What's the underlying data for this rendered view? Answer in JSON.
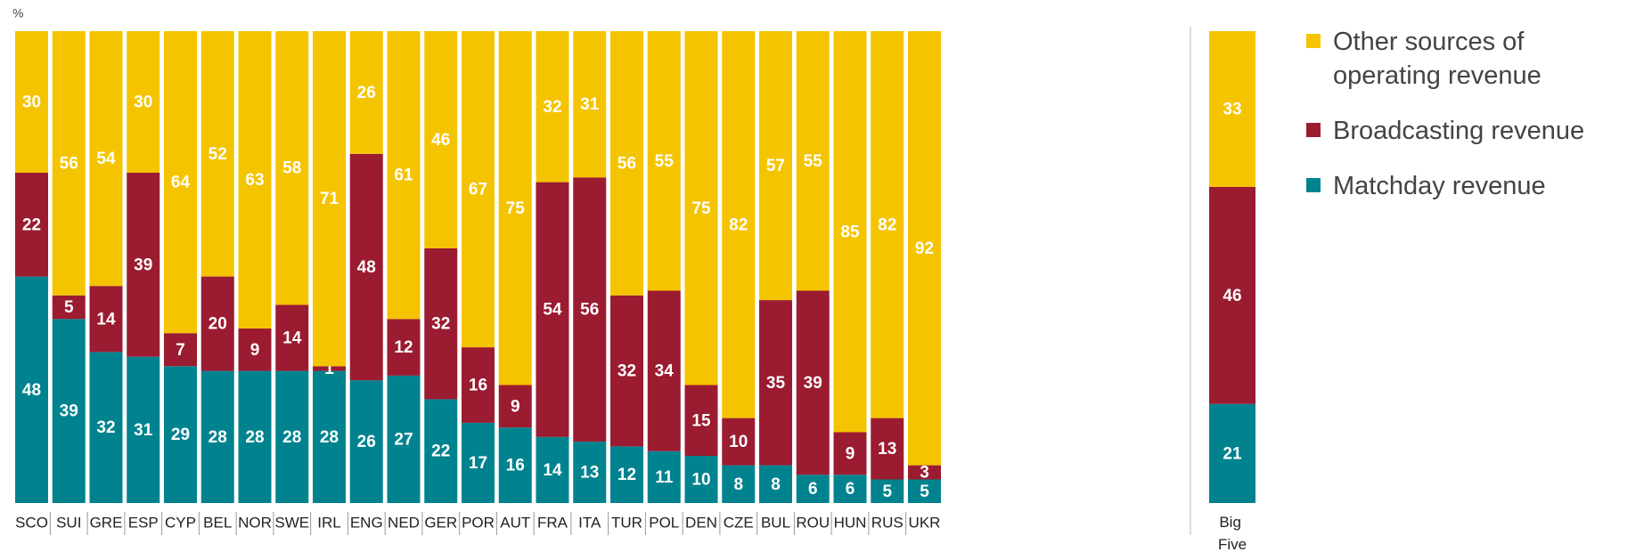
{
  "chart_data": {
    "type": "stacked_bar",
    "ylabel": "%",
    "categories": [
      "SCO",
      "SUI",
      "GRE",
      "ESP",
      "CYP",
      "BEL",
      "NOR",
      "SWE",
      "IRL",
      "ENG",
      "NED",
      "GER",
      "POR",
      "AUT",
      "FRA",
      "ITA",
      "TUR",
      "POL",
      "DEN",
      "CZE",
      "BUL",
      "ROU",
      "HUN",
      "RUS",
      "UKR",
      "Big Five"
    ],
    "ylim": [
      0,
      100
    ],
    "series": [
      {
        "name": "Matchday revenue",
        "color": "#00838f",
        "values": [
          48,
          39,
          32,
          31,
          29,
          28,
          28,
          28,
          28,
          26,
          27,
          22,
          17,
          16,
          14,
          13,
          12,
          11,
          10,
          8,
          8,
          6,
          6,
          5,
          5,
          21
        ]
      },
      {
        "name": "Broadcasting revenue",
        "color": "#9b1b30",
        "values": [
          22,
          5,
          14,
          39,
          7,
          20,
          9,
          14,
          1,
          48,
          12,
          32,
          16,
          9,
          54,
          56,
          32,
          34,
          15,
          10,
          35,
          39,
          9,
          13,
          3,
          46
        ]
      },
      {
        "name": "Other sources of operating revenue",
        "color": "#f5c400",
        "values": [
          30,
          56,
          54,
          30,
          64,
          52,
          63,
          58,
          71,
          26,
          61,
          46,
          67,
          75,
          32,
          31,
          56,
          55,
          75,
          82,
          57,
          55,
          85,
          82,
          92,
          33
        ]
      }
    ],
    "legend": "right"
  }
}
